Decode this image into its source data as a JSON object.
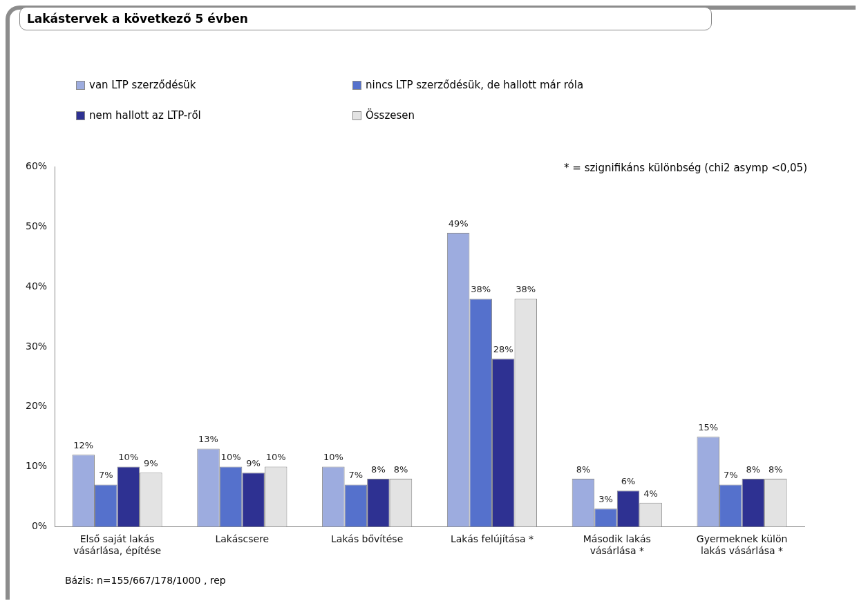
{
  "chart_data": {
    "type": "bar",
    "title": "Lakástervek a következő 5 évben",
    "categories": [
      "Első saját lakás vásárlása, építése",
      "Lakáscsere",
      "Lakás bővítése",
      "Lakás felújítása *",
      "Második lakás vásárlása *",
      "Gyermeknek külön lakás vásárlása *"
    ],
    "series": [
      {
        "name": "van LTP szerződésük",
        "color": "#9dacdf",
        "values": [
          12,
          13,
          10,
          49,
          8,
          15
        ],
        "value_labels": [
          "12%",
          "13%",
          "10%",
          "49%",
          "8%",
          "15%"
        ]
      },
      {
        "name": "nincs LTP szerződésük, de hallott már róla",
        "color": "#5571cc",
        "values": [
          7,
          10,
          7,
          38,
          3,
          7
        ],
        "value_labels": [
          "7%",
          "10%",
          "7%",
          "38%",
          "3%",
          "7%"
        ]
      },
      {
        "name": "nem hallott az LTP-ről",
        "color": "#2e3192",
        "values": [
          10,
          9,
          8,
          28,
          6,
          8
        ],
        "value_labels": [
          "10%",
          "9%",
          "8%",
          "28%",
          "6%",
          "8%"
        ]
      },
      {
        "name": "Összesen",
        "color": "#e3e3e3",
        "values": [
          9,
          10,
          8,
          38,
          4,
          8
        ],
        "value_labels": [
          "9%",
          "10%",
          "8%",
          "38%",
          "4%",
          "8%"
        ]
      }
    ],
    "ylim": [
      0,
      60
    ],
    "yticks": [
      {
        "value": 0,
        "label": "0%"
      },
      {
        "value": 10,
        "label": "10%"
      },
      {
        "value": 20,
        "label": "20%"
      },
      {
        "value": 30,
        "label": "30%"
      },
      {
        "value": 40,
        "label": "40%"
      },
      {
        "value": 50,
        "label": "50%"
      },
      {
        "value": 60,
        "label": "60%"
      }
    ],
    "grid": false,
    "legend": "top",
    "annotations": [
      "* = szignifikáns különbség (chi2 asymp <0,05)",
      "Bázis: n=155/667/178/1000 , rep"
    ]
  }
}
